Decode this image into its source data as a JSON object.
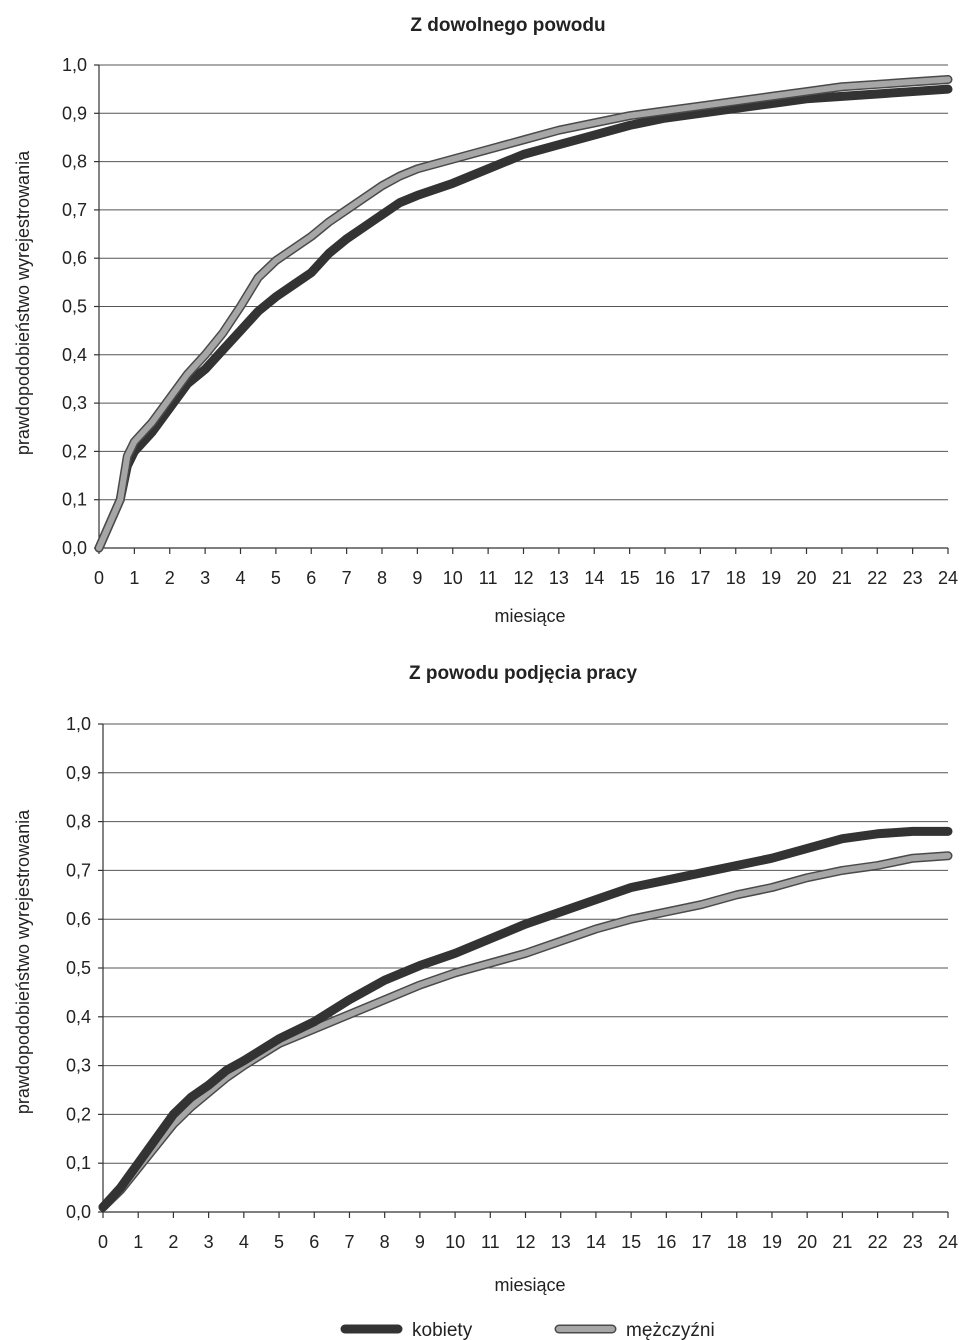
{
  "colors": {
    "kobiety": "#333333",
    "mezczyzni_fill": "#a6a6a6",
    "mezczyzni_outline": "#4a4a4a"
  },
  "legend": {
    "items": [
      {
        "label": "kobiety",
        "series_key": "kobiety"
      },
      {
        "label": "mężczyźni",
        "series_key": "mezczyzni"
      }
    ]
  },
  "chart_data": [
    {
      "type": "line",
      "title": "Z dowolnego powodu",
      "xlabel": "miesiące",
      "ylabel": "prawdopodobieństwo wyrejestrowania",
      "xlim": [
        0,
        24
      ],
      "ylim": [
        0,
        1
      ],
      "xticks": [
        0,
        1,
        2,
        3,
        4,
        5,
        6,
        7,
        8,
        9,
        10,
        11,
        12,
        13,
        14,
        15,
        16,
        17,
        18,
        19,
        20,
        21,
        22,
        23,
        24
      ],
      "yticks": [
        0,
        0.1,
        0.2,
        0.3,
        0.4,
        0.5,
        0.6,
        0.7,
        0.8,
        0.9,
        1.0
      ],
      "ytick_labels": [
        "0,0",
        "0,1",
        "0,2",
        "0,3",
        "0,4",
        "0,5",
        "0,6",
        "0,7",
        "0,8",
        "0,9",
        "1,0"
      ],
      "grid": "horizontal",
      "series": [
        {
          "key": "kobiety",
          "x": [
            0,
            0.3,
            0.6,
            0.8,
            1,
            1.5,
            2,
            2.5,
            3,
            3.5,
            4,
            4.5,
            5,
            5.5,
            6,
            6.5,
            7,
            7.5,
            8,
            8.5,
            9,
            10,
            11,
            12,
            13,
            14,
            15,
            16,
            17,
            18,
            19,
            20,
            21,
            22,
            23,
            24
          ],
          "y": [
            0,
            0.05,
            0.1,
            0.17,
            0.2,
            0.24,
            0.29,
            0.34,
            0.37,
            0.41,
            0.45,
            0.49,
            0.52,
            0.545,
            0.57,
            0.61,
            0.64,
            0.665,
            0.69,
            0.715,
            0.73,
            0.755,
            0.785,
            0.815,
            0.835,
            0.855,
            0.875,
            0.89,
            0.9,
            0.91,
            0.92,
            0.93,
            0.935,
            0.94,
            0.945,
            0.95
          ]
        },
        {
          "key": "mezczyzni",
          "x": [
            0,
            0.3,
            0.6,
            0.8,
            1,
            1.5,
            2,
            2.5,
            3,
            3.5,
            4,
            4.5,
            5,
            5.5,
            6,
            6.5,
            7,
            7.5,
            8,
            8.5,
            9,
            10,
            11,
            12,
            13,
            14,
            15,
            16,
            17,
            18,
            19,
            20,
            21,
            22,
            23,
            24
          ],
          "y": [
            0,
            0.05,
            0.1,
            0.19,
            0.22,
            0.26,
            0.31,
            0.36,
            0.4,
            0.445,
            0.5,
            0.56,
            0.595,
            0.62,
            0.645,
            0.675,
            0.7,
            0.725,
            0.75,
            0.77,
            0.785,
            0.805,
            0.825,
            0.845,
            0.865,
            0.88,
            0.895,
            0.905,
            0.915,
            0.925,
            0.935,
            0.945,
            0.955,
            0.96,
            0.965,
            0.97
          ]
        }
      ]
    },
    {
      "type": "line",
      "title": "Z powodu podjęcia pracy",
      "xlabel": "miesiące",
      "ylabel": "prawdopodobieństwo wyrejestrowania",
      "xlim": [
        0,
        24
      ],
      "ylim": [
        0,
        1
      ],
      "xticks": [
        0,
        1,
        2,
        3,
        4,
        5,
        6,
        7,
        8,
        9,
        10,
        11,
        12,
        13,
        14,
        15,
        16,
        17,
        18,
        19,
        20,
        21,
        22,
        23,
        24
      ],
      "yticks": [
        0,
        0.1,
        0.2,
        0.3,
        0.4,
        0.5,
        0.6,
        0.7,
        0.8,
        0.9,
        1.0
      ],
      "ytick_labels": [
        "0,0",
        "0,1",
        "0,2",
        "0,3",
        "0,4",
        "0,5",
        "0,6",
        "0,7",
        "0,8",
        "0,9",
        "1,0"
      ],
      "grid": "horizontal",
      "series": [
        {
          "key": "kobiety",
          "x": [
            0,
            0.5,
            1,
            1.5,
            2,
            2.5,
            3,
            3.5,
            4,
            5,
            6,
            7,
            8,
            9,
            10,
            11,
            12,
            13,
            14,
            15,
            16,
            17,
            18,
            19,
            20,
            21,
            22,
            23,
            24
          ],
          "y": [
            0.01,
            0.05,
            0.1,
            0.15,
            0.2,
            0.235,
            0.26,
            0.29,
            0.31,
            0.355,
            0.39,
            0.435,
            0.475,
            0.505,
            0.53,
            0.56,
            0.59,
            0.615,
            0.64,
            0.665,
            0.68,
            0.695,
            0.71,
            0.725,
            0.745,
            0.765,
            0.775,
            0.78,
            0.78
          ]
        },
        {
          "key": "mezczyzni",
          "x": [
            0,
            0.5,
            1,
            1.5,
            2,
            2.5,
            3,
            3.5,
            4,
            5,
            6,
            7,
            8,
            9,
            10,
            11,
            12,
            13,
            14,
            15,
            16,
            17,
            18,
            19,
            20,
            21,
            22,
            23,
            24
          ],
          "y": [
            0.01,
            0.045,
            0.09,
            0.135,
            0.18,
            0.215,
            0.245,
            0.275,
            0.3,
            0.345,
            0.375,
            0.405,
            0.435,
            0.465,
            0.49,
            0.51,
            0.53,
            0.555,
            0.58,
            0.6,
            0.615,
            0.63,
            0.65,
            0.665,
            0.685,
            0.7,
            0.71,
            0.725,
            0.73
          ]
        }
      ]
    }
  ]
}
